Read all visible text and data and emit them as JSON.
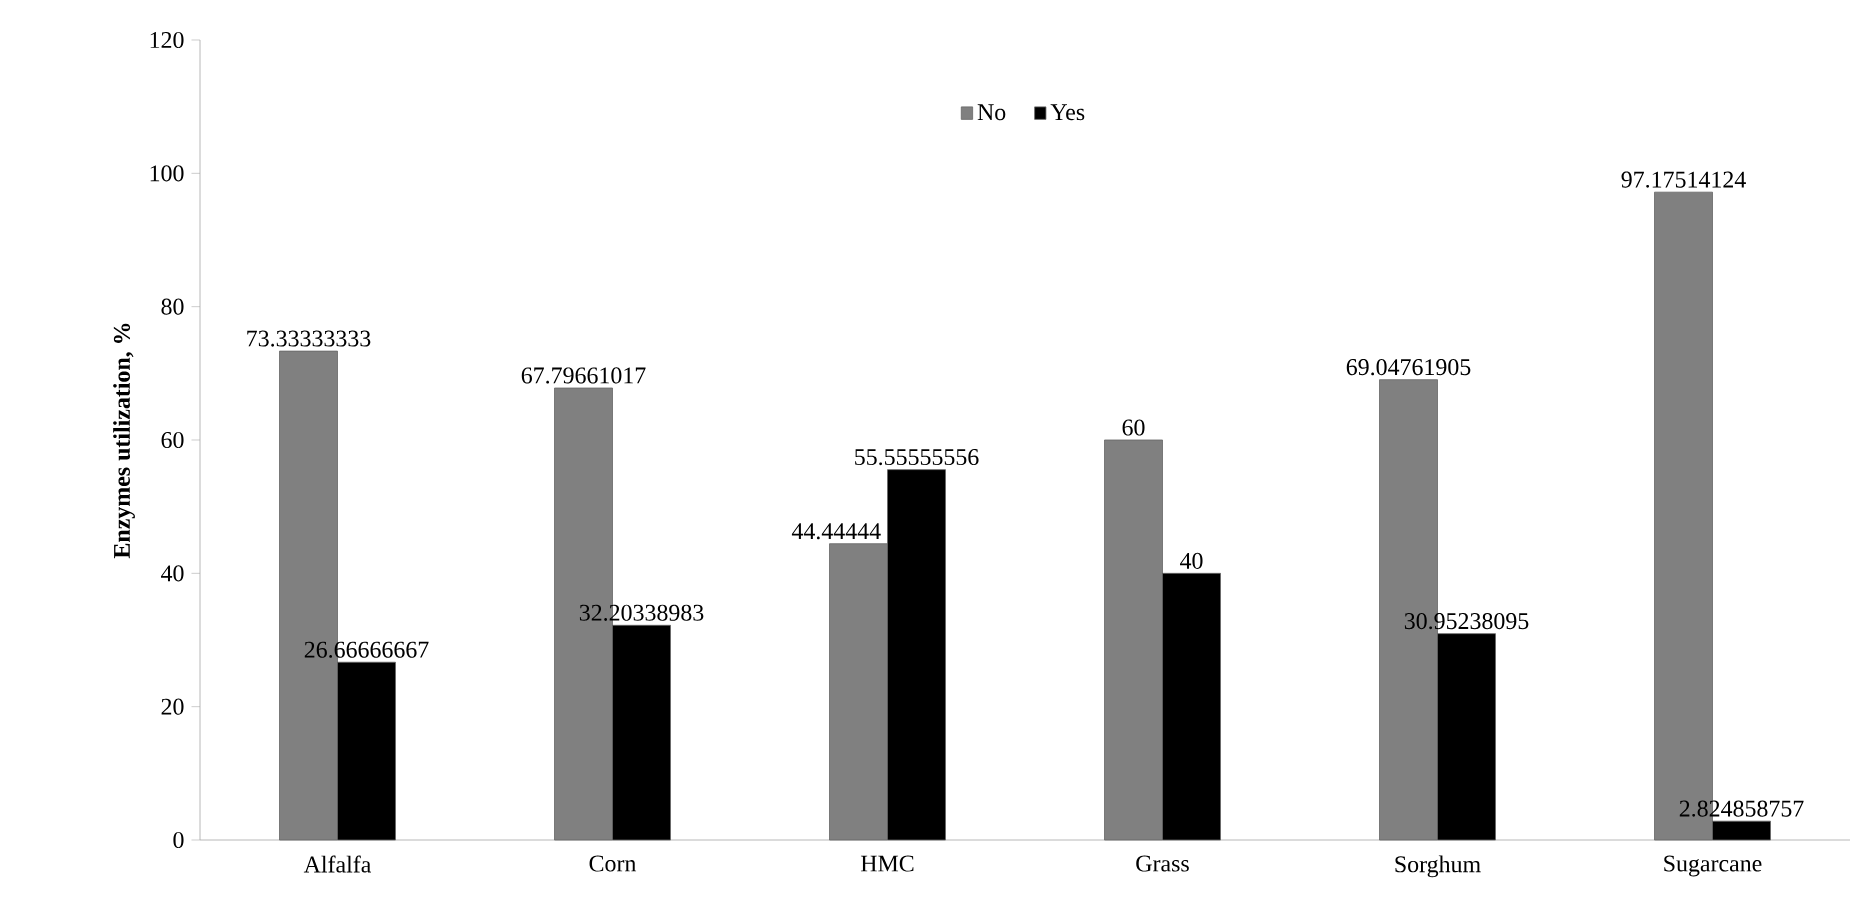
{
  "chart_data": {
    "type": "bar",
    "ylabel": "Enzymes utilization, %",
    "categories": [
      "Alfalfa",
      "Corn",
      "HMC",
      "Grass",
      "Sorghum",
      "Sugarcane"
    ],
    "series": [
      {
        "name": "No",
        "color": "#808080",
        "values": [
          73.33333333,
          67.79661017,
          44.44444,
          60,
          69.04761905,
          97.17514124
        ]
      },
      {
        "name": "Yes",
        "color": "#000000",
        "values": [
          26.66666667,
          32.20338983,
          55.55555556,
          40,
          30.95238095,
          2.824858757
        ]
      }
    ],
    "ylim": [
      0,
      120
    ],
    "yticks": [
      0,
      20,
      40,
      60,
      80,
      100,
      120
    ],
    "data_labels": true,
    "legend": "top",
    "grid": false
  }
}
